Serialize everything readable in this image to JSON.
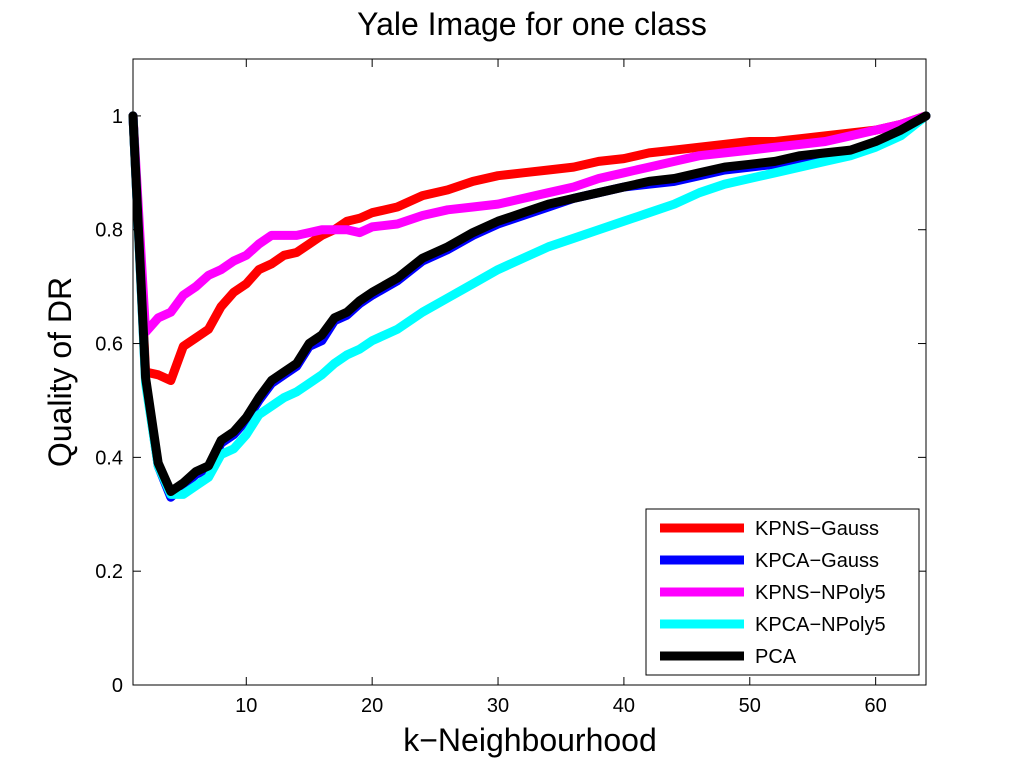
{
  "chart_data": {
    "type": "line",
    "title": "Yale Image for one class",
    "xlabel": "k−Neighbourhood",
    "ylabel": "Quality of DR",
    "xlim": [
      1,
      64
    ],
    "ylim": [
      0,
      1.1
    ],
    "xticks": [
      10,
      20,
      30,
      40,
      50,
      60
    ],
    "yticks": [
      0,
      0.2,
      0.4,
      0.6,
      0.8,
      1
    ],
    "xtick_labels": [
      "10",
      "20",
      "30",
      "40",
      "50",
      "60"
    ],
    "ytick_labels": [
      "0",
      "0.2",
      "0.4",
      "0.6",
      "0.8",
      "1"
    ],
    "grid": false,
    "legend_position": "bottom-right",
    "series": [
      {
        "name": "KPNS−Gauss",
        "color": "#ff0000",
        "x": [
          1,
          2,
          3,
          4,
          5,
          6,
          7,
          8,
          9,
          10,
          11,
          12,
          13,
          14,
          15,
          16,
          17,
          18,
          19,
          20,
          22,
          24,
          26,
          28,
          30,
          32,
          34,
          36,
          38,
          40,
          42,
          44,
          46,
          48,
          50,
          52,
          54,
          56,
          58,
          60,
          62,
          64
        ],
        "values": [
          1.0,
          0.55,
          0.545,
          0.535,
          0.595,
          0.61,
          0.625,
          0.665,
          0.69,
          0.705,
          0.73,
          0.74,
          0.755,
          0.76,
          0.775,
          0.79,
          0.8,
          0.815,
          0.82,
          0.83,
          0.84,
          0.86,
          0.87,
          0.885,
          0.895,
          0.9,
          0.905,
          0.91,
          0.92,
          0.925,
          0.935,
          0.94,
          0.945,
          0.95,
          0.955,
          0.955,
          0.96,
          0.965,
          0.97,
          0.975,
          0.985,
          1.0
        ]
      },
      {
        "name": "KPCA−Gauss",
        "color": "#0000ff",
        "x": [
          1,
          2,
          3,
          4,
          5,
          6,
          7,
          8,
          9,
          10,
          11,
          12,
          13,
          14,
          15,
          16,
          17,
          18,
          19,
          20,
          22,
          24,
          26,
          28,
          30,
          32,
          34,
          36,
          38,
          40,
          42,
          44,
          46,
          48,
          50,
          52,
          54,
          56,
          58,
          60,
          62,
          64
        ],
        "values": [
          1.0,
          0.535,
          0.385,
          0.33,
          0.35,
          0.37,
          0.38,
          0.425,
          0.44,
          0.465,
          0.5,
          0.53,
          0.545,
          0.56,
          0.595,
          0.605,
          0.64,
          0.65,
          0.67,
          0.685,
          0.71,
          0.745,
          0.765,
          0.79,
          0.81,
          0.825,
          0.84,
          0.855,
          0.865,
          0.875,
          0.88,
          0.885,
          0.895,
          0.905,
          0.91,
          0.915,
          0.925,
          0.93,
          0.935,
          0.95,
          0.97,
          1.0
        ]
      },
      {
        "name": "KPNS−NPoly5",
        "color": "#ff00ff",
        "x": [
          1,
          2,
          3,
          4,
          5,
          6,
          7,
          8,
          9,
          10,
          11,
          12,
          13,
          14,
          15,
          16,
          17,
          18,
          19,
          20,
          22,
          24,
          26,
          28,
          30,
          32,
          34,
          36,
          38,
          40,
          42,
          44,
          46,
          48,
          50,
          52,
          54,
          56,
          58,
          60,
          62,
          64
        ],
        "values": [
          1.0,
          0.62,
          0.645,
          0.655,
          0.685,
          0.7,
          0.72,
          0.73,
          0.745,
          0.755,
          0.775,
          0.79,
          0.79,
          0.79,
          0.795,
          0.8,
          0.8,
          0.8,
          0.795,
          0.805,
          0.81,
          0.825,
          0.835,
          0.84,
          0.845,
          0.855,
          0.865,
          0.875,
          0.89,
          0.9,
          0.91,
          0.92,
          0.93,
          0.935,
          0.94,
          0.945,
          0.95,
          0.955,
          0.965,
          0.975,
          0.985,
          1.0
        ]
      },
      {
        "name": "KPCA−NPoly5",
        "color": "#00ffff",
        "x": [
          1,
          2,
          3,
          4,
          5,
          6,
          7,
          8,
          9,
          10,
          11,
          12,
          13,
          14,
          15,
          16,
          17,
          18,
          19,
          20,
          22,
          24,
          26,
          28,
          30,
          32,
          34,
          36,
          38,
          40,
          42,
          44,
          46,
          48,
          50,
          52,
          54,
          56,
          58,
          60,
          62,
          64
        ],
        "values": [
          1.0,
          0.53,
          0.385,
          0.335,
          0.335,
          0.35,
          0.365,
          0.405,
          0.415,
          0.44,
          0.475,
          0.49,
          0.505,
          0.515,
          0.53,
          0.545,
          0.565,
          0.58,
          0.59,
          0.605,
          0.625,
          0.655,
          0.68,
          0.705,
          0.73,
          0.75,
          0.77,
          0.785,
          0.8,
          0.815,
          0.83,
          0.845,
          0.865,
          0.88,
          0.89,
          0.9,
          0.91,
          0.92,
          0.93,
          0.945,
          0.965,
          1.0
        ]
      },
      {
        "name": "PCA",
        "color": "#000000",
        "x": [
          1,
          2,
          3,
          4,
          5,
          6,
          7,
          8,
          9,
          10,
          11,
          12,
          13,
          14,
          15,
          16,
          17,
          18,
          19,
          20,
          22,
          24,
          26,
          28,
          30,
          32,
          34,
          36,
          38,
          40,
          42,
          44,
          46,
          48,
          50,
          52,
          54,
          56,
          58,
          60,
          62,
          64
        ],
        "values": [
          1.0,
          0.54,
          0.39,
          0.34,
          0.355,
          0.375,
          0.385,
          0.43,
          0.445,
          0.47,
          0.505,
          0.535,
          0.55,
          0.565,
          0.6,
          0.615,
          0.645,
          0.655,
          0.675,
          0.69,
          0.715,
          0.75,
          0.77,
          0.795,
          0.815,
          0.83,
          0.845,
          0.855,
          0.865,
          0.875,
          0.885,
          0.89,
          0.9,
          0.91,
          0.915,
          0.92,
          0.93,
          0.935,
          0.94,
          0.955,
          0.975,
          1.0
        ]
      }
    ]
  }
}
